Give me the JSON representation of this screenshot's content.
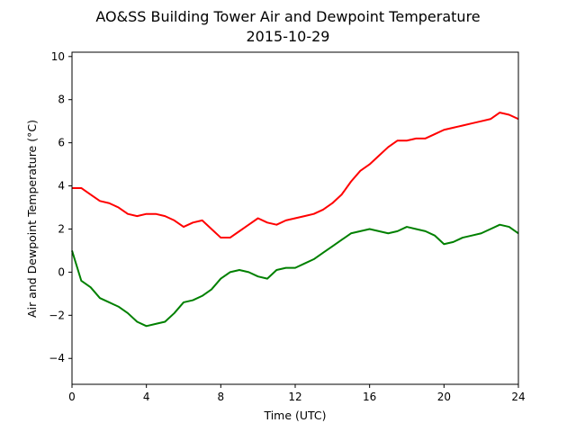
{
  "chart_data": {
    "type": "line",
    "title": "AO&SS Building Tower Air and Dewpoint Temperature",
    "subtitle": "2015-10-29",
    "xlabel": "Time (UTC)",
    "ylabel": "Air and Dewpoint Temperature (°C)",
    "xlim": [
      0,
      24
    ],
    "ylim": [
      -5.2,
      10.2
    ],
    "xticks": [
      "0",
      "4",
      "8",
      "12",
      "16",
      "20",
      "24"
    ],
    "yticks": [
      "−4",
      "−2",
      "0",
      "2",
      "4",
      "6",
      "8",
      "10"
    ],
    "grid": false,
    "series": [
      {
        "color": "#ff0000",
        "x": [
          0,
          0.5,
          1,
          1.5,
          2,
          2.5,
          3,
          3.5,
          4,
          4.5,
          5,
          5.5,
          6,
          6.5,
          7,
          7.5,
          8,
          8.5,
          9,
          9.5,
          10,
          10.5,
          11,
          11.5,
          12,
          12.5,
          13,
          13.5,
          14,
          14.5,
          15,
          15.5,
          16,
          16.5,
          17,
          17.5,
          18,
          18.5,
          19,
          19.5,
          20,
          20.5,
          21,
          21.5,
          22,
          22.5,
          23,
          23.5,
          24
        ],
        "y": [
          3.9,
          3.9,
          3.6,
          3.3,
          3.2,
          3.0,
          2.7,
          2.6,
          2.7,
          2.7,
          2.6,
          2.4,
          2.1,
          2.3,
          2.4,
          2.0,
          1.6,
          1.6,
          1.9,
          2.2,
          2.5,
          2.3,
          2.2,
          2.4,
          2.5,
          2.6,
          2.7,
          2.9,
          3.2,
          3.6,
          4.2,
          4.7,
          5.0,
          5.4,
          5.8,
          6.1,
          6.1,
          6.2,
          6.2,
          6.4,
          6.6,
          6.7,
          6.8,
          6.9,
          7.0,
          7.1,
          7.4,
          7.3,
          7.1
        ]
      },
      {
        "color": "#008000",
        "x": [
          0,
          0.5,
          1,
          1.5,
          2,
          2.5,
          3,
          3.5,
          4,
          4.5,
          5,
          5.5,
          6,
          6.5,
          7,
          7.5,
          8,
          8.5,
          9,
          9.5,
          10,
          10.5,
          11,
          11.5,
          12,
          12.5,
          13,
          13.5,
          14,
          14.5,
          15,
          15.5,
          16,
          16.5,
          17,
          17.5,
          18,
          18.5,
          19,
          19.5,
          20,
          20.5,
          21,
          21.5,
          22,
          22.5,
          23,
          23.5,
          24
        ],
        "y": [
          1.0,
          -0.4,
          -0.7,
          -1.2,
          -1.4,
          -1.6,
          -1.9,
          -2.3,
          -2.5,
          -2.4,
          -2.3,
          -1.9,
          -1.4,
          -1.3,
          -1.1,
          -0.8,
          -0.3,
          0.0,
          0.1,
          0.0,
          -0.2,
          -0.3,
          0.1,
          0.2,
          0.2,
          0.4,
          0.6,
          0.9,
          1.2,
          1.5,
          1.8,
          1.9,
          2.0,
          1.9,
          1.8,
          1.9,
          2.1,
          2.0,
          1.9,
          1.7,
          1.3,
          1.4,
          1.6,
          1.7,
          1.8,
          2.0,
          2.2,
          2.1,
          1.8
        ]
      }
    ]
  }
}
